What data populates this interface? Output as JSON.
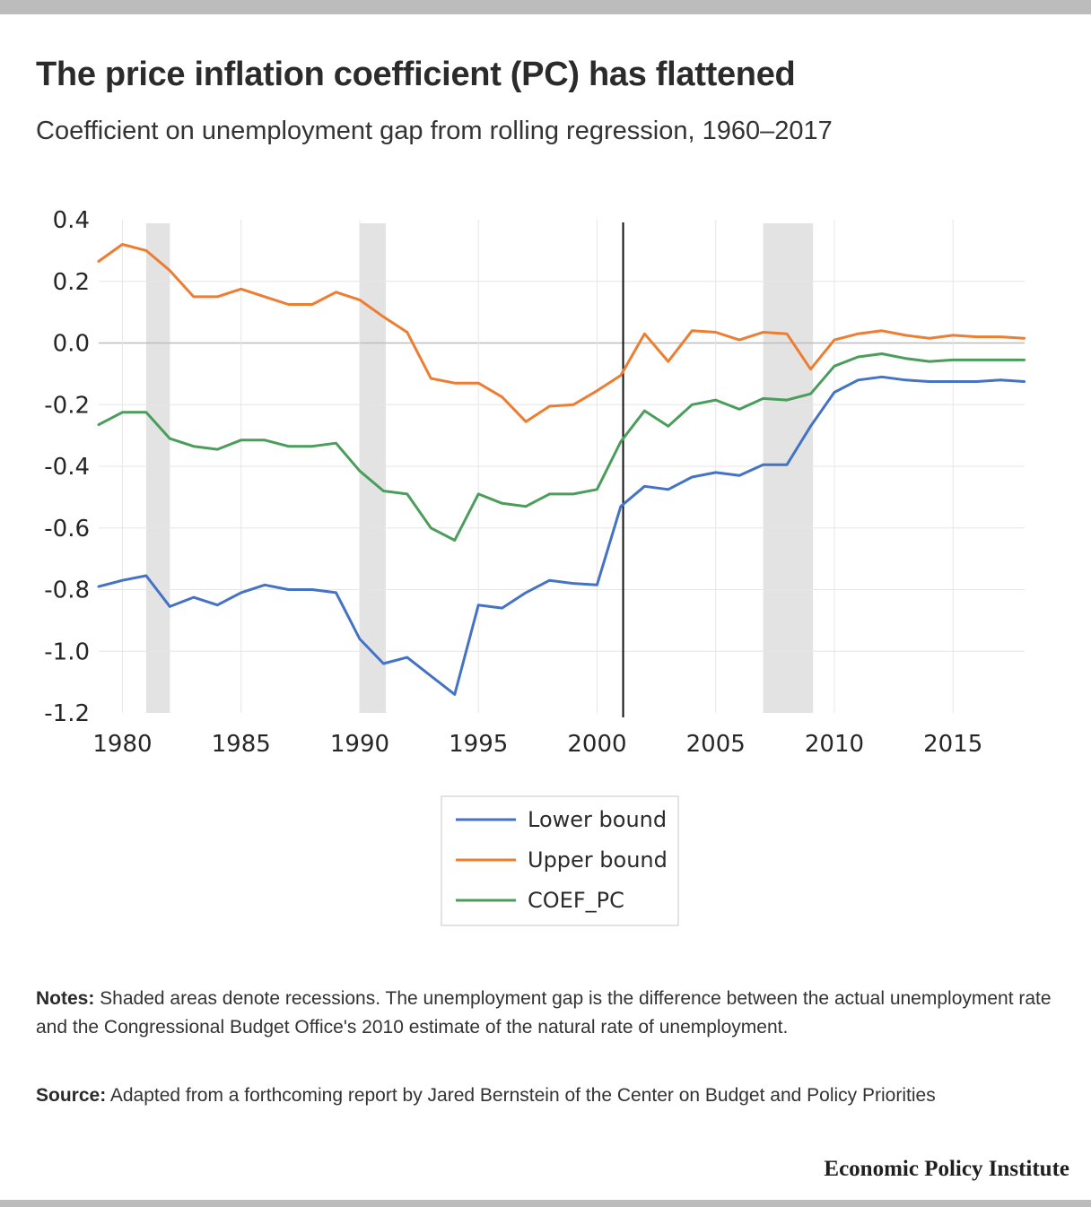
{
  "title": "The price inflation coefficient (PC) has flattened",
  "subtitle": "Coefficient on unemployment gap from rolling regression, 1960–2017",
  "notes": {
    "label": "Notes:",
    "text": " Shaded areas denote recessions. The unemployment gap is the difference between the actual unemployment rate and the Congressional Budget Office's 2010 estimate of the natural rate of unemployment."
  },
  "source": {
    "label": "Source:",
    "text": " Adapted from a forthcoming report by Jared Bernstein of the Center on Budget and Policy Priorities"
  },
  "brand": "Economic Policy Institute",
  "chart_data": {
    "type": "line",
    "title": "",
    "xlabel": "",
    "ylabel": "",
    "xlim": [
      1979,
      2018.3
    ],
    "ylim": [
      -1.2,
      0.4
    ],
    "y_ticks": [
      "0.4",
      "0.2",
      "0.0",
      "-0.2",
      "-0.4",
      "-0.6",
      "-0.8",
      "-1.0",
      "-1.2"
    ],
    "y_tick_values": [
      0.4,
      0.2,
      0.0,
      -0.2,
      -0.4,
      -0.6,
      -0.8,
      -1.0,
      -1.2
    ],
    "x_ticks": [
      "1980",
      "1985",
      "1990",
      "1995",
      "2000",
      "2005",
      "2010",
      "2015"
    ],
    "x_tick_values": [
      1980,
      1985,
      1990,
      1995,
      2000,
      2005,
      2010,
      2015
    ],
    "grid": true,
    "legend_position": "bottom-center",
    "recessions": [
      [
        1981,
        1982
      ],
      [
        1990,
        1991.1
      ],
      [
        2007,
        2009.1
      ]
    ],
    "vertical_marker": 2001.1,
    "x": [
      1979,
      1980,
      1981,
      1982,
      1983,
      1984,
      1985,
      1986,
      1987,
      1988,
      1989,
      1990,
      1991,
      1992,
      1993,
      1994,
      1995,
      1996,
      1997,
      1998,
      1999,
      2000,
      2001,
      2002,
      2003,
      2004,
      2005,
      2006,
      2007,
      2008,
      2009,
      2010,
      2011,
      2012,
      2013,
      2014,
      2015,
      2016,
      2017,
      2018
    ],
    "series": [
      {
        "name": "Lower bound",
        "color": "#4472c4",
        "values": [
          -0.79,
          -0.77,
          -0.755,
          -0.855,
          -0.825,
          -0.85,
          -0.81,
          -0.785,
          -0.8,
          -0.8,
          -0.81,
          -0.96,
          -1.04,
          -1.02,
          -1.08,
          -1.14,
          -0.85,
          -0.86,
          -0.81,
          -0.77,
          -0.78,
          -0.785,
          -0.53,
          -0.465,
          -0.475,
          -0.435,
          -0.42,
          -0.43,
          -0.395,
          -0.395,
          -0.27,
          -0.16,
          -0.12,
          -0.11,
          -0.12,
          -0.125,
          -0.125,
          -0.125,
          -0.12,
          -0.125
        ]
      },
      {
        "name": "Upper bound",
        "color": "#ed7d31",
        "values": [
          0.265,
          0.32,
          0.3,
          0.235,
          0.15,
          0.15,
          0.175,
          0.15,
          0.125,
          0.125,
          0.165,
          0.14,
          0.085,
          0.035,
          -0.115,
          -0.13,
          -0.13,
          -0.175,
          -0.255,
          -0.205,
          -0.2,
          -0.155,
          -0.105,
          0.03,
          -0.06,
          0.04,
          0.035,
          0.01,
          0.035,
          0.03,
          -0.085,
          0.01,
          0.03,
          0.04,
          0.025,
          0.015,
          0.025,
          0.02,
          0.02,
          0.015
        ]
      },
      {
        "name": "COEF_PC",
        "color": "#4a9d5b",
        "values": [
          -0.265,
          -0.225,
          -0.225,
          -0.31,
          -0.335,
          -0.345,
          -0.315,
          -0.315,
          -0.335,
          -0.335,
          -0.325,
          -0.415,
          -0.48,
          -0.49,
          -0.6,
          -0.64,
          -0.49,
          -0.52,
          -0.53,
          -0.49,
          -0.49,
          -0.475,
          -0.32,
          -0.22,
          -0.27,
          -0.2,
          -0.185,
          -0.215,
          -0.18,
          -0.185,
          -0.165,
          -0.075,
          -0.045,
          -0.035,
          -0.05,
          -0.06,
          -0.055,
          -0.055,
          -0.055,
          -0.055
        ]
      }
    ]
  }
}
